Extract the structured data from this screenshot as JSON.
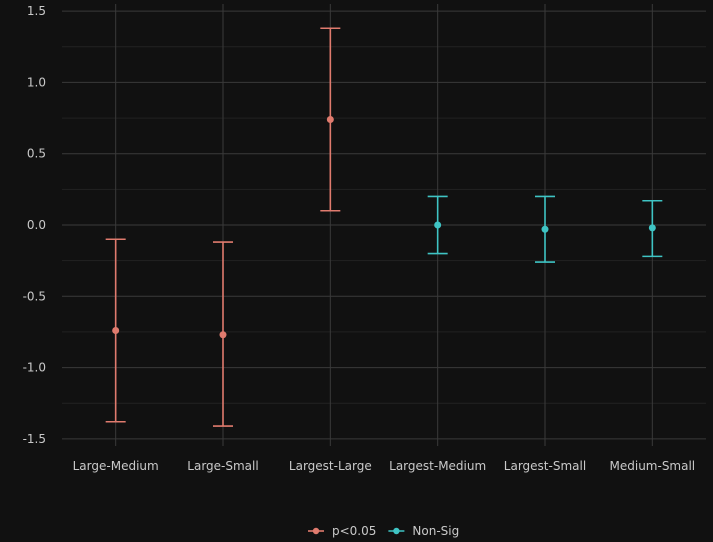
{
  "chart_data": {
    "type": "errorbar",
    "title": "",
    "xlabel": "",
    "ylabel": "",
    "ylim": [
      -1.55,
      1.55
    ],
    "yticks": [
      -1.5,
      -1.0,
      -0.5,
      0.0,
      0.5,
      1.0,
      1.5
    ],
    "ytick_labels": [
      "-1.5",
      "-1.0",
      "-0.5",
      "0.0",
      "0.5",
      "1.0",
      "1.5"
    ],
    "grid": true,
    "legend_position": "bottom",
    "categories": [
      "Large-Medium",
      "Large-Small",
      "Largest-Large",
      "Largest-Medium",
      "Largest-Small",
      "Medium-Small"
    ],
    "points": [
      {
        "category": "Large-Medium",
        "estimate": -0.74,
        "lower": -1.38,
        "upper": -0.1,
        "group": "p<0.05"
      },
      {
        "category": "Large-Small",
        "estimate": -0.77,
        "lower": -1.41,
        "upper": -0.12,
        "group": "p<0.05"
      },
      {
        "category": "Largest-Large",
        "estimate": 0.74,
        "lower": 0.1,
        "upper": 1.38,
        "group": "p<0.05"
      },
      {
        "category": "Largest-Medium",
        "estimate": 0.0,
        "lower": -0.2,
        "upper": 0.2,
        "group": "Non-Sig"
      },
      {
        "category": "Largest-Small",
        "estimate": -0.03,
        "lower": -0.26,
        "upper": 0.2,
        "group": "Non-Sig"
      },
      {
        "category": "Medium-Small",
        "estimate": -0.02,
        "lower": -0.22,
        "upper": 0.17,
        "group": "Non-Sig"
      }
    ],
    "legend": [
      {
        "name": "p<0.05",
        "color": "#e07b6e"
      },
      {
        "name": "Non-Sig",
        "color": "#3fc4c4"
      }
    ],
    "colors": {
      "background": "#111111",
      "grid": "#3a3a3a",
      "text": "#c9c9c9"
    }
  }
}
